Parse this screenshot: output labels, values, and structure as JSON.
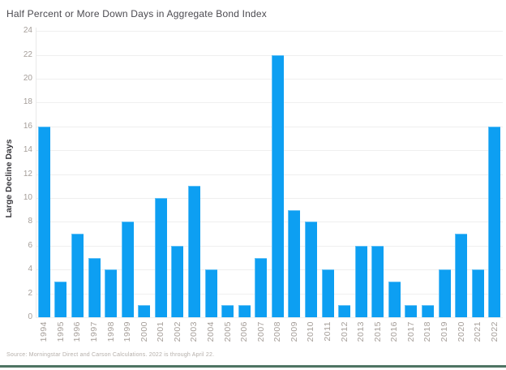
{
  "title": "Half Percent or More Down Days in Aggregate Bond Index",
  "source_note": "Source: Morningstar Direct and Carson Calculations. 2022 is through April 22.",
  "colors": {
    "bar": "#0d9ff2",
    "grid": "#efefef",
    "axis_line": "#e9e9e9",
    "title_text": "#4b4a50",
    "tick_text": "#a59e99",
    "y_axis_title_text": "#38373c",
    "source_text": "#b5afaa",
    "footer_rule": "#4e7463",
    "background": "#ffffff"
  },
  "chart_data": {
    "type": "bar",
    "title": "Half Percent or More Down Days in Aggregate Bond Index",
    "xlabel": "",
    "ylabel": "Large Decline Days",
    "categories": [
      "1994",
      "1995",
      "1996",
      "1997",
      "1998",
      "1999",
      "2000",
      "2001",
      "2002",
      "2003",
      "2004",
      "2005",
      "2006",
      "2007",
      "2008",
      "2009",
      "2010",
      "2011",
      "2012",
      "2013",
      "2015",
      "2016",
      "2017",
      "2018",
      "2019",
      "2020",
      "2021",
      "2022"
    ],
    "values": [
      16,
      3,
      7,
      5,
      4,
      8,
      1,
      10,
      6,
      11,
      4,
      1,
      1,
      5,
      22,
      9,
      8,
      4,
      1,
      6,
      6,
      3,
      1,
      1,
      4,
      7,
      4,
      16
    ],
    "ylim": [
      0,
      24
    ],
    "ytick_step": 2,
    "grid": "horizontal",
    "legend": "none",
    "note": "Year 2014 is absent from the category axis"
  }
}
